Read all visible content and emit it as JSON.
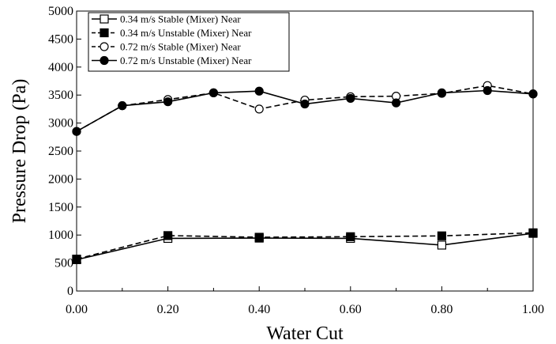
{
  "chart_data": {
    "type": "line",
    "xlabel": "Water Cut",
    "ylabel": "Pressure Drop (Pa)",
    "xlim": [
      0,
      1
    ],
    "ylim": [
      0,
      5000
    ],
    "xticks": [
      "0.00",
      "0.20",
      "0.40",
      "0.60",
      "0.80",
      "1.00"
    ],
    "yticks": [
      "0",
      "500",
      "1000",
      "1500",
      "2000",
      "2500",
      "3000",
      "3500",
      "4000",
      "4500",
      "5000"
    ],
    "grid": false,
    "legend_position": "top-left",
    "series": [
      {
        "name": "0.34 m/s Stable (Mixer) Near",
        "marker": "open-square",
        "line": "solid",
        "x": [
          0.0,
          0.2,
          0.4,
          0.6,
          0.8,
          1.0
        ],
        "y": [
          560,
          940,
          945,
          940,
          820,
          1030
        ]
      },
      {
        "name": "0.34 m/s Unstable (Mixer) Near",
        "marker": "filled-square",
        "line": "dashed",
        "x": [
          0.0,
          0.2,
          0.4,
          0.6,
          0.8,
          1.0
        ],
        "y": [
          570,
          990,
          960,
          970,
          985,
          1040
        ]
      },
      {
        "name": "0.72 m/s Stable (Mixer) Near",
        "marker": "open-circle",
        "line": "dashed",
        "x": [
          0.0,
          0.1,
          0.2,
          0.3,
          0.4,
          0.5,
          0.6,
          0.7,
          0.8,
          0.9,
          1.0
        ],
        "y": [
          2850,
          3310,
          3420,
          3540,
          3250,
          3410,
          3470,
          3480,
          3530,
          3670,
          3520
        ]
      },
      {
        "name": "0.72 m/s Unstable (Mixer) Near",
        "marker": "filled-circle",
        "line": "solid",
        "x": [
          0.0,
          0.1,
          0.2,
          0.3,
          0.4,
          0.5,
          0.6,
          0.7,
          0.8,
          0.9,
          1.0
        ],
        "y": [
          2850,
          3310,
          3380,
          3540,
          3570,
          3340,
          3440,
          3360,
          3540,
          3580,
          3520
        ]
      }
    ]
  }
}
